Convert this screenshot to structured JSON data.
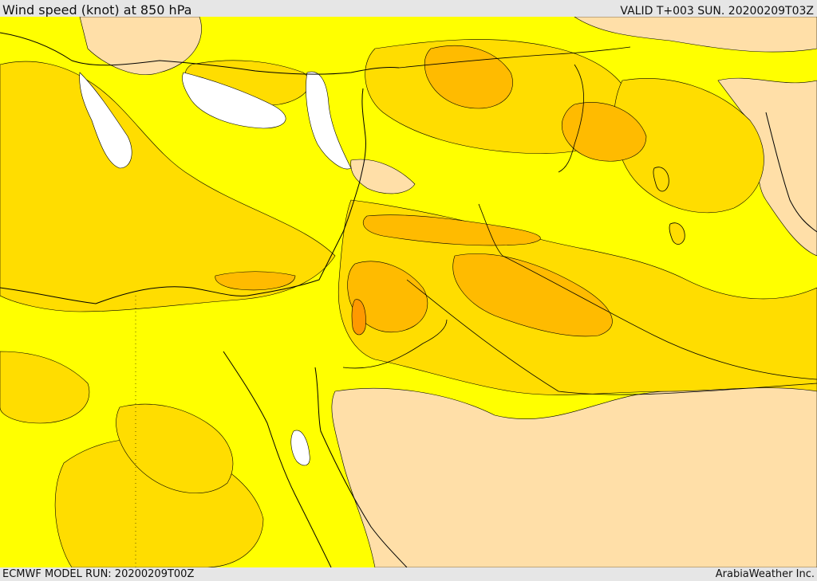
{
  "header": {
    "title": "Wind speed (knot) at 850 hPa",
    "valid": "VALID T+003 SUN. 20200209T03Z"
  },
  "footer": {
    "model_run": "ECMWF MODEL RUN: 20200209T00Z",
    "credit": "ArabiaWeather Inc."
  },
  "colors": {
    "band_white": "#ffffff",
    "band_yellow": "#ffff00",
    "band_gold": "#ffdd00",
    "band_orange": "#ffbb00",
    "band_dark_orange": "#ff9900",
    "band_peach": "#ffdfa8",
    "outline": "#000000"
  }
}
